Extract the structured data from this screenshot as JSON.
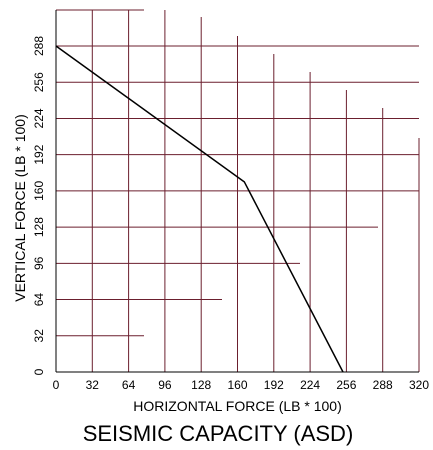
{
  "chart_data": {
    "type": "line",
    "title": "SEISMIC CAPACITY (ASD)",
    "xlabel": "HORIZONTAL FORCE (LB * 100)",
    "ylabel": "VERTICAL FORCE (LB * 100)",
    "xlim": [
      0,
      320
    ],
    "ylim": [
      0,
      288
    ],
    "x_ticks": [
      0,
      32,
      64,
      96,
      128,
      160,
      192,
      224,
      256,
      288,
      320
    ],
    "y_ticks": [
      0,
      32,
      64,
      96,
      128,
      160,
      192,
      224,
      256,
      288
    ],
    "x_tick_labels": [
      "0",
      "32",
      "64",
      "96",
      "128",
      "160",
      "192",
      "224",
      "256",
      "288",
      "320"
    ],
    "y_tick_labels": [
      "0",
      "32",
      "64",
      "96",
      "128",
      "160",
      "192",
      "224",
      "256",
      "288"
    ],
    "grid": true,
    "grid_color": "#6b1f2e",
    "line_color": "#000000",
    "series": [
      {
        "points": [
          {
            "x": 0,
            "y": 288
          },
          {
            "x": 166,
            "y": 168
          },
          {
            "x": 253,
            "y": 0
          }
        ]
      }
    ]
  }
}
